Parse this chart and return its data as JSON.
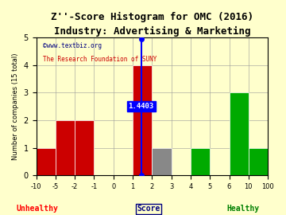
{
  "title": "Z''-Score Histogram for OMC (2016)",
  "subtitle": "Industry: Advertising & Marketing",
  "xlabel": "Score",
  "ylabel": "Number of companies (15 total)",
  "watermark1": "©www.textbiz.org",
  "watermark2": "The Research Foundation of SUNY",
  "zscore_value": 1.4403,
  "bin_labels": [
    "-10",
    "-5",
    "-2",
    "-1",
    "0",
    "1",
    "2",
    "3",
    "4",
    "5",
    "6",
    "10",
    "100"
  ],
  "counts": [
    1,
    2,
    2,
    0,
    0,
    4,
    1,
    0,
    1,
    0,
    3,
    1
  ],
  "colors": [
    "#cc0000",
    "#cc0000",
    "#cc0000",
    "#cc0000",
    "#cc0000",
    "#cc0000",
    "#888888",
    "#888888",
    "#00aa00",
    "#00aa00",
    "#00aa00",
    "#00aa00"
  ],
  "ylim": [
    0,
    5
  ],
  "yticks": [
    0,
    1,
    2,
    3,
    4,
    5
  ],
  "unhealthy_label": "Unhealthy",
  "healthy_label": "Healthy",
  "score_label": "Score",
  "bg_color": "#ffffcc",
  "title_fontsize": 9,
  "subtitle_fontsize": 8
}
